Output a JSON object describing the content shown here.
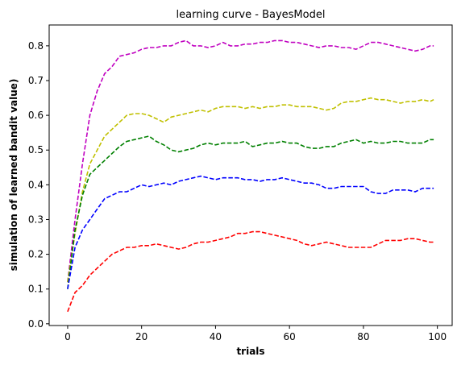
{
  "chart_data": {
    "type": "line",
    "title": "learning curve - BayesModel",
    "xlabel": "trials",
    "ylabel": "simulation of learned bandit value)",
    "xlim": [
      -5,
      104
    ],
    "ylim": [
      -0.005,
      0.86
    ],
    "xticks": [
      "0",
      "20",
      "40",
      "60",
      "80",
      "100"
    ],
    "yticks": [
      "0.0",
      "0.1",
      "0.2",
      "0.3",
      "0.4",
      "0.5",
      "0.6",
      "0.7",
      "0.8"
    ],
    "grid": false,
    "line_style": "dashed",
    "series": [
      {
        "color": "#c000c0",
        "x": [
          0,
          2,
          4,
          6,
          8,
          10,
          12,
          14,
          16,
          18,
          20,
          22,
          24,
          26,
          28,
          30,
          32,
          34,
          36,
          38,
          40,
          42,
          44,
          46,
          48,
          50,
          52,
          54,
          56,
          58,
          60,
          62,
          64,
          66,
          68,
          70,
          72,
          74,
          76,
          78,
          80,
          82,
          84,
          86,
          88,
          90,
          92,
          94,
          96,
          98,
          99
        ],
        "y": [
          0.12,
          0.3,
          0.46,
          0.6,
          0.67,
          0.72,
          0.74,
          0.77,
          0.775,
          0.78,
          0.79,
          0.795,
          0.795,
          0.8,
          0.8,
          0.81,
          0.815,
          0.8,
          0.8,
          0.795,
          0.8,
          0.81,
          0.8,
          0.8,
          0.805,
          0.805,
          0.81,
          0.81,
          0.815,
          0.815,
          0.81,
          0.81,
          0.805,
          0.8,
          0.795,
          0.8,
          0.8,
          0.795,
          0.795,
          0.79,
          0.8,
          0.81,
          0.81,
          0.805,
          0.8,
          0.795,
          0.79,
          0.785,
          0.79,
          0.8,
          0.8
        ]
      },
      {
        "color": "#c0c000",
        "x": [
          0,
          2,
          4,
          6,
          8,
          10,
          12,
          14,
          16,
          18,
          20,
          22,
          24,
          26,
          28,
          30,
          32,
          34,
          36,
          38,
          40,
          42,
          44,
          46,
          48,
          50,
          52,
          54,
          56,
          58,
          60,
          62,
          64,
          66,
          68,
          70,
          72,
          74,
          76,
          78,
          80,
          82,
          84,
          86,
          88,
          90,
          92,
          94,
          96,
          98,
          99
        ],
        "y": [
          0.12,
          0.26,
          0.38,
          0.46,
          0.5,
          0.54,
          0.56,
          0.58,
          0.6,
          0.605,
          0.605,
          0.6,
          0.59,
          0.58,
          0.595,
          0.6,
          0.605,
          0.61,
          0.615,
          0.61,
          0.62,
          0.625,
          0.625,
          0.625,
          0.62,
          0.625,
          0.62,
          0.625,
          0.625,
          0.63,
          0.63,
          0.625,
          0.625,
          0.625,
          0.62,
          0.615,
          0.62,
          0.635,
          0.64,
          0.64,
          0.645,
          0.65,
          0.645,
          0.645,
          0.64,
          0.635,
          0.64,
          0.64,
          0.645,
          0.64,
          0.645
        ]
      },
      {
        "color": "#008000",
        "x": [
          0,
          2,
          4,
          6,
          8,
          10,
          12,
          14,
          16,
          18,
          20,
          22,
          24,
          26,
          28,
          30,
          32,
          34,
          36,
          38,
          40,
          42,
          44,
          46,
          48,
          50,
          52,
          54,
          56,
          58,
          60,
          62,
          64,
          66,
          68,
          70,
          72,
          74,
          76,
          78,
          80,
          82,
          84,
          86,
          88,
          90,
          92,
          94,
          96,
          98,
          99
        ],
        "y": [
          0.1,
          0.27,
          0.37,
          0.43,
          0.45,
          0.47,
          0.49,
          0.51,
          0.525,
          0.53,
          0.535,
          0.54,
          0.525,
          0.515,
          0.5,
          0.495,
          0.5,
          0.505,
          0.515,
          0.52,
          0.515,
          0.52,
          0.52,
          0.52,
          0.525,
          0.51,
          0.515,
          0.52,
          0.52,
          0.525,
          0.52,
          0.52,
          0.51,
          0.505,
          0.505,
          0.51,
          0.51,
          0.52,
          0.525,
          0.53,
          0.52,
          0.525,
          0.52,
          0.52,
          0.525,
          0.525,
          0.52,
          0.52,
          0.52,
          0.53,
          0.53
        ]
      },
      {
        "color": "#0000ff",
        "x": [
          0,
          2,
          4,
          6,
          8,
          10,
          12,
          14,
          16,
          18,
          20,
          22,
          24,
          26,
          28,
          30,
          32,
          34,
          36,
          38,
          40,
          42,
          44,
          46,
          48,
          50,
          52,
          54,
          56,
          58,
          60,
          62,
          64,
          66,
          68,
          70,
          72,
          74,
          76,
          78,
          80,
          82,
          84,
          86,
          88,
          90,
          92,
          94,
          96,
          98,
          99
        ],
        "y": [
          0.1,
          0.22,
          0.27,
          0.3,
          0.33,
          0.36,
          0.37,
          0.38,
          0.38,
          0.39,
          0.4,
          0.395,
          0.4,
          0.405,
          0.4,
          0.41,
          0.415,
          0.42,
          0.425,
          0.42,
          0.415,
          0.42,
          0.42,
          0.42,
          0.415,
          0.415,
          0.41,
          0.415,
          0.415,
          0.42,
          0.415,
          0.41,
          0.405,
          0.405,
          0.4,
          0.39,
          0.39,
          0.395,
          0.395,
          0.395,
          0.395,
          0.38,
          0.375,
          0.375,
          0.385,
          0.385,
          0.385,
          0.38,
          0.39,
          0.39,
          0.39
        ]
      },
      {
        "color": "#ff0000",
        "x": [
          0,
          2,
          4,
          6,
          8,
          10,
          12,
          14,
          16,
          18,
          20,
          22,
          24,
          26,
          28,
          30,
          32,
          34,
          36,
          38,
          40,
          42,
          44,
          46,
          48,
          50,
          52,
          54,
          56,
          58,
          60,
          62,
          64,
          66,
          68,
          70,
          72,
          74,
          76,
          78,
          80,
          82,
          84,
          86,
          88,
          90,
          92,
          94,
          96,
          98,
          99
        ],
        "y": [
          0.035,
          0.09,
          0.11,
          0.14,
          0.16,
          0.18,
          0.2,
          0.21,
          0.22,
          0.22,
          0.225,
          0.225,
          0.23,
          0.225,
          0.22,
          0.215,
          0.22,
          0.23,
          0.235,
          0.235,
          0.24,
          0.245,
          0.25,
          0.26,
          0.26,
          0.265,
          0.265,
          0.26,
          0.255,
          0.25,
          0.245,
          0.24,
          0.23,
          0.225,
          0.23,
          0.235,
          0.23,
          0.225,
          0.22,
          0.22,
          0.22,
          0.22,
          0.23,
          0.24,
          0.24,
          0.24,
          0.245,
          0.245,
          0.24,
          0.235,
          0.235
        ]
      }
    ]
  }
}
